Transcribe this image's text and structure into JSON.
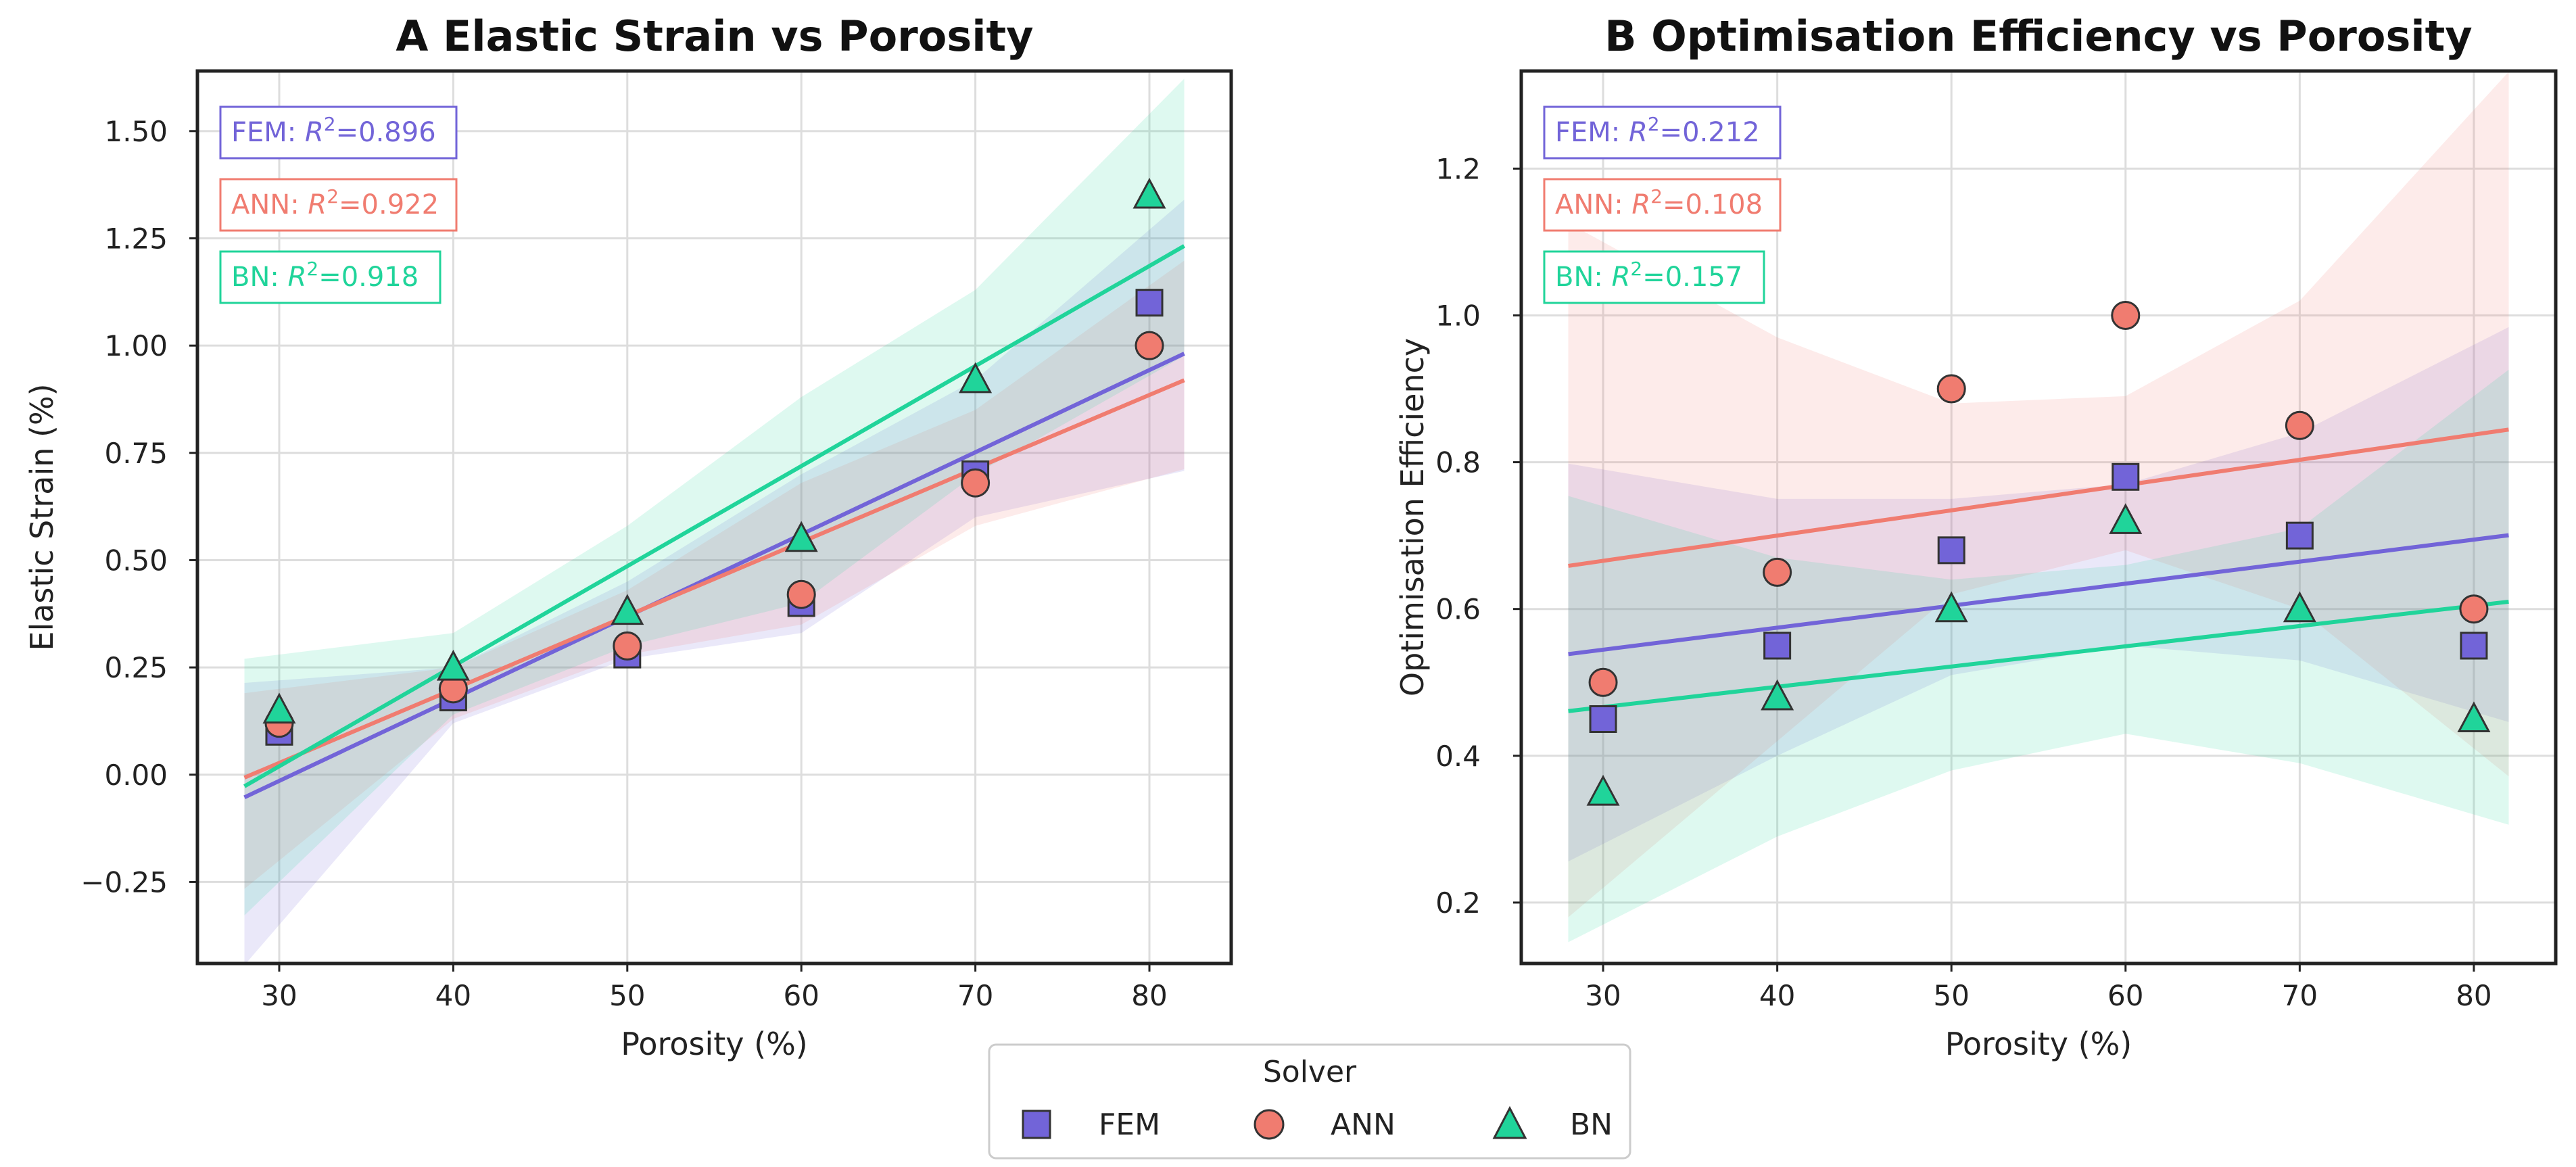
{
  "colors": {
    "FEM": "#7264d8",
    "ANN": "#f07c70",
    "BN": "#20d49a",
    "grid": "#dddddd",
    "axis": "#222222",
    "marker_edge": "#333333"
  },
  "legend": {
    "title": "Solver",
    "entries": [
      {
        "name": "FEM",
        "marker": "square"
      },
      {
        "name": "ANN",
        "marker": "circle"
      },
      {
        "name": "BN",
        "marker": "triangle"
      }
    ]
  },
  "chart_data": [
    {
      "type": "scatter",
      "title": "A  Elastic Strain vs Porosity",
      "xlabel": "Porosity (%)",
      "ylabel": "Elastic Strain (%)",
      "xlim": [
        25.3,
        84.7
      ],
      "ylim": [
        -0.44,
        1.64
      ],
      "xticks": [
        30,
        40,
        50,
        60,
        70,
        80
      ],
      "xtick_labels": [
        "30",
        "40",
        "50",
        "60",
        "70",
        "80"
      ],
      "yticks": [
        -0.25,
        0,
        0.25,
        0.5,
        0.75,
        1.0,
        1.25,
        1.5
      ],
      "ytick_labels": [
        "−0.25",
        "0.00",
        "0.25",
        "0.50",
        "0.75",
        "1.00",
        "1.25",
        "1.50"
      ],
      "grid": true,
      "fit_range": [
        28,
        82
      ],
      "series": [
        {
          "name": "FEM",
          "marker": "square",
          "x": [
            30,
            40,
            50,
            60,
            70,
            80
          ],
          "y": [
            0.1,
            0.18,
            0.28,
            0.4,
            0.7,
            1.1
          ],
          "fit": {
            "slope": 0.01915,
            "intercept": -0.589
          },
          "band": {
            "lower": [
              -0.35,
              0.12,
              0.27,
              0.33,
              0.6,
              0.69
            ],
            "upper": [
              0.22,
              0.25,
              0.45,
              0.7,
              0.92,
              1.27
            ]
          },
          "r2_label": "FEM: ",
          "r2_value": "=0.896"
        },
        {
          "name": "ANN",
          "marker": "circle",
          "x": [
            30,
            40,
            50,
            60,
            70,
            80
          ],
          "y": [
            0.12,
            0.2,
            0.3,
            0.42,
            0.68,
            1.0
          ],
          "fit": {
            "slope": 0.01715,
            "intercept": -0.487
          },
          "band": {
            "lower": [
              -0.2,
              0.13,
              0.28,
              0.35,
              0.58,
              0.69
            ],
            "upper": [
              0.2,
              0.25,
              0.43,
              0.68,
              0.85,
              1.14
            ]
          },
          "r2_label": "ANN: ",
          "r2_value": "=0.922"
        },
        {
          "name": "BN",
          "marker": "triangle",
          "x": [
            30,
            40,
            50,
            60,
            70,
            80
          ],
          "y": [
            0.15,
            0.25,
            0.38,
            0.55,
            0.92,
            1.35
          ],
          "fit": {
            "slope": 0.02332,
            "intercept": -0.68
          },
          "band": {
            "lower": [
              -0.25,
              0.14,
              0.3,
              0.4,
              0.7,
              0.93
            ],
            "upper": [
              0.28,
              0.33,
              0.58,
              0.88,
              1.13,
              1.54
            ]
          },
          "r2_label": "BN: ",
          "r2_value": "=0.918"
        }
      ]
    },
    {
      "type": "scatter",
      "title": "B  Optimisation Efficiency vs Porosity",
      "xlabel": "Porosity (%)",
      "ylabel": "Optimisation Efficiency",
      "xlim": [
        25.3,
        84.7
      ],
      "ylim": [
        0.117,
        1.333
      ],
      "xticks": [
        30,
        40,
        50,
        60,
        70,
        80
      ],
      "xtick_labels": [
        "30",
        "40",
        "50",
        "60",
        "70",
        "80"
      ],
      "yticks": [
        0.2,
        0.4,
        0.6,
        0.8,
        1.0,
        1.2
      ],
      "ytick_labels": [
        "0.2",
        "0.4",
        "0.6",
        "0.8",
        "1.0",
        "1.2"
      ],
      "grid": true,
      "fit_range": [
        28,
        82
      ],
      "series": [
        {
          "name": "FEM",
          "marker": "square",
          "x": [
            30,
            40,
            50,
            60,
            70,
            80
          ],
          "y": [
            0.45,
            0.55,
            0.68,
            0.78,
            0.7,
            0.55
          ],
          "fit": {
            "slope": 0.003,
            "intercept": 0.4545
          },
          "band": {
            "lower": [
              0.28,
              0.4,
              0.51,
              0.55,
              0.53,
              0.46
            ],
            "upper": [
              0.79,
              0.75,
              0.75,
              0.77,
              0.84,
              0.96
            ]
          },
          "r2_label": "FEM: ",
          "r2_value": "=0.212"
        },
        {
          "name": "ANN",
          "marker": "circle",
          "x": [
            30,
            40,
            50,
            60,
            70,
            80
          ],
          "y": [
            0.5,
            0.65,
            0.9,
            1.0,
            0.85,
            0.6
          ],
          "fit": {
            "slope": 0.00344,
            "intercept": 0.5624
          },
          "band": {
            "lower": [
              0.22,
              0.42,
              0.62,
              0.68,
              0.6,
              0.41
            ],
            "upper": [
              1.1,
              0.97,
              0.88,
              0.89,
              1.02,
              1.28
            ]
          },
          "r2_label": "ANN: ",
          "r2_value": "=0.108"
        },
        {
          "name": "BN",
          "marker": "triangle",
          "x": [
            30,
            40,
            50,
            60,
            70,
            80
          ],
          "y": [
            0.35,
            0.48,
            0.6,
            0.72,
            0.6,
            0.45
          ],
          "fit": {
            "slope": 0.00276,
            "intercept": 0.3836
          },
          "band": {
            "lower": [
              0.17,
              0.29,
              0.38,
              0.43,
              0.39,
              0.32
            ],
            "upper": [
              0.74,
              0.67,
              0.64,
              0.66,
              0.71,
              0.89
            ]
          },
          "r2_label": "BN: ",
          "r2_value": "=0.157"
        }
      ]
    }
  ]
}
